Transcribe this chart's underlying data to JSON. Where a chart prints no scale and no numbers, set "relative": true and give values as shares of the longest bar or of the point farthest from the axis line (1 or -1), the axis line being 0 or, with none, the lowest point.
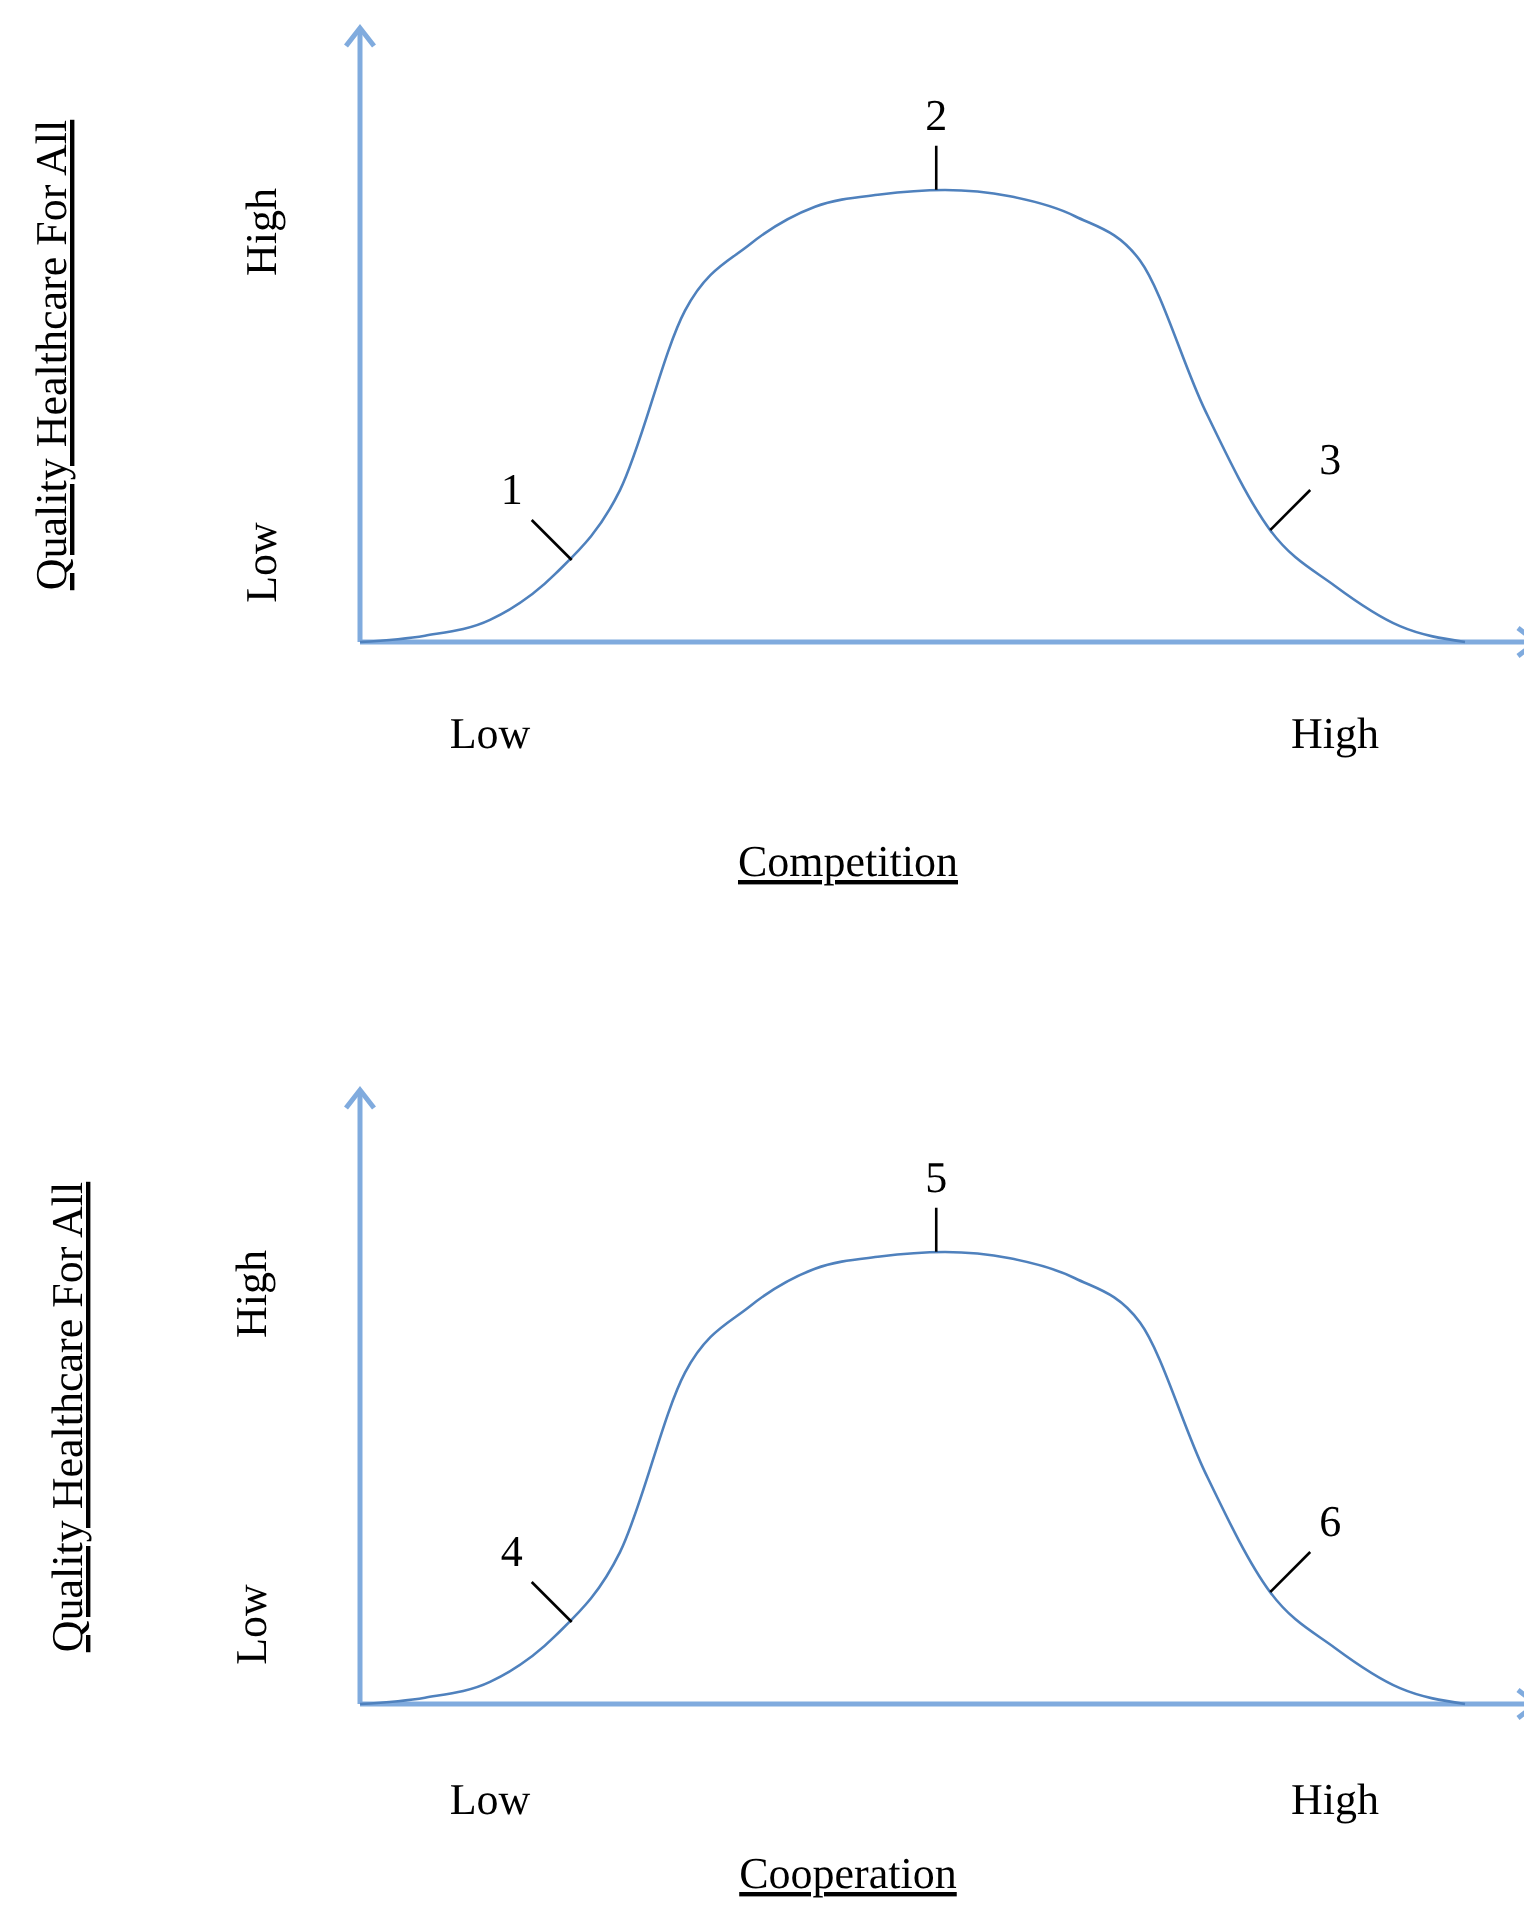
{
  "chart_data": [
    {
      "type": "line",
      "relative": true,
      "xlabel": "Competition",
      "ylabel": "Quality Healthcare For All",
      "categories": [
        null,
        null,
        "Low",
        null,
        null,
        null,
        null,
        null,
        null,
        null,
        null,
        null,
        null,
        null,
        null,
        "High",
        null,
        null
      ],
      "series": [
        {
          "color": "#4f81bd",
          "values": [
            0,
            0.014,
            0.049,
            0.15,
            0.336,
            0.733,
            0.88,
            0.963,
            0.99,
            1,
            0.986,
            0.942,
            0.844,
            0.513,
            0.248,
            0.124,
            0.035,
            0
          ]
        }
      ],
      "annotations": [
        "High",
        "Low",
        "1",
        "2",
        "3"
      ]
    },
    {
      "type": "line",
      "relative": true,
      "xlabel": "Cooperation",
      "ylabel": "Quality Healthcare For All",
      "categories": [
        null,
        null,
        "Low",
        null,
        null,
        null,
        null,
        null,
        null,
        null,
        null,
        null,
        null,
        null,
        null,
        "High",
        null,
        null
      ],
      "series": [
        {
          "color": "#4f81bd",
          "values": [
            0,
            0.014,
            0.049,
            0.15,
            0.336,
            0.733,
            0.88,
            0.963,
            0.99,
            1,
            0.986,
            0.942,
            0.844,
            0.513,
            0.248,
            0.124,
            0.035,
            0
          ]
        }
      ],
      "annotations": [
        "High",
        "Low",
        "4",
        "5",
        "6"
      ]
    }
  ]
}
